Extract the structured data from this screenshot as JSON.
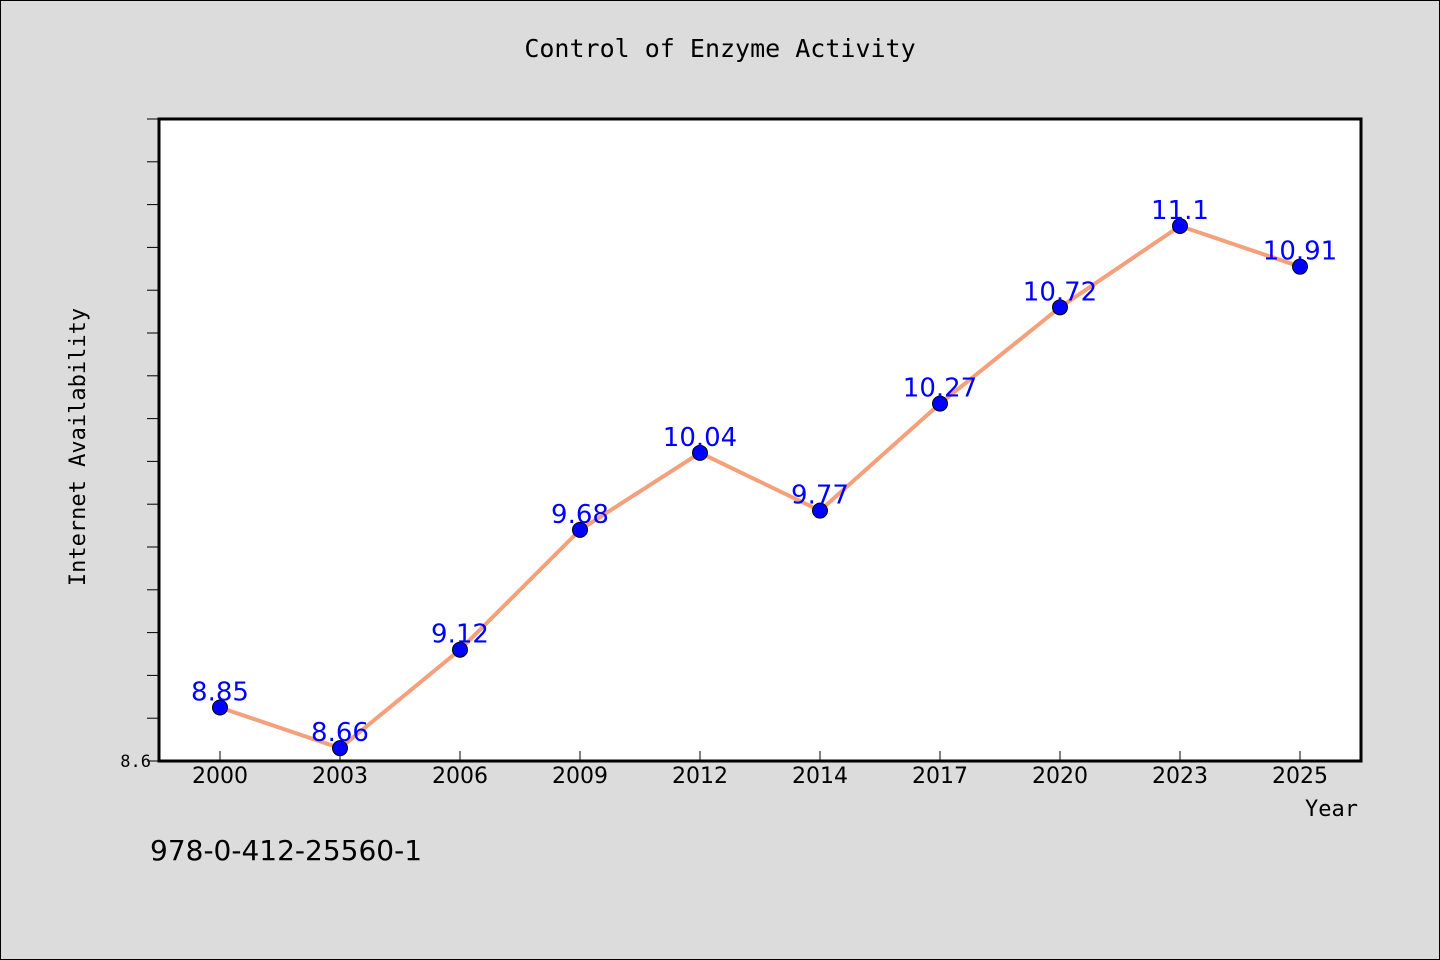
{
  "chart_data": {
    "type": "line",
    "title": "Control of Enzyme Activity",
    "xlabel": "Year",
    "ylabel": "Internet Availability",
    "categories": [
      "2000",
      "2003",
      "2006",
      "2009",
      "2012",
      "2014",
      "2017",
      "2020",
      "2023",
      "2025"
    ],
    "series": [
      {
        "values": [
          8.85,
          8.66,
          9.12,
          9.68,
          10.04,
          9.77,
          10.27,
          10.72,
          11.1,
          10.91
        ]
      }
    ],
    "data_labels": [
      "8.85",
      "8.66",
      "9.12",
      "9.68",
      "10.04",
      "9.77",
      "10.27",
      "10.72",
      "11.1",
      "10.91"
    ],
    "y_tick_labels": [
      "8.6"
    ],
    "ylim": [
      8.6,
      11.6
    ],
    "grid": false,
    "line_color": "#f4a07a",
    "marker_color": "#0000ff",
    "label_color": "#0000ff"
  },
  "footer_text": "978-0-412-25560-1"
}
